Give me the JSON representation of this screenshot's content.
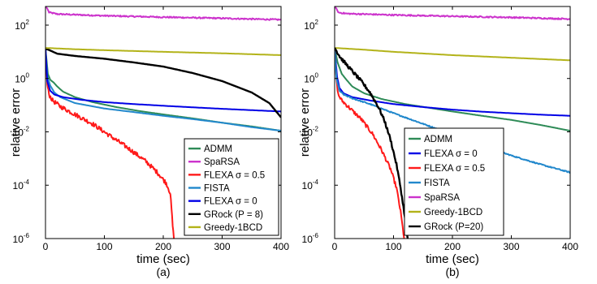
{
  "chart_data": [
    {
      "type": "line",
      "panel_label": "(a)",
      "xlabel": "time (sec)",
      "ylabel": "relative error",
      "xlim": [
        0,
        400
      ],
      "ylim": [
        1e-06,
        500
      ],
      "yscale": "log",
      "x_ticks": [
        0,
        100,
        200,
        300,
        400
      ],
      "y_ticks": [
        {
          "base": "10",
          "exp": "-6",
          "value": 1e-06
        },
        {
          "base": "10",
          "exp": "-4",
          "value": 0.0001
        },
        {
          "base": "10",
          "exp": "-2",
          "value": 0.01
        },
        {
          "base": "10",
          "exp": "0",
          "value": 1
        },
        {
          "base": "10",
          "exp": "2",
          "value": 100
        }
      ],
      "legend_position": "bottom-right",
      "series": [
        {
          "name": "ADMM",
          "color": "#2e8b57",
          "width": 2,
          "noise": 0,
          "points": [
            [
              0,
              13
            ],
            [
              4,
              1.5
            ],
            [
              8,
              0.9
            ],
            [
              14,
              0.7
            ],
            [
              20,
              0.5
            ],
            [
              30,
              0.32
            ],
            [
              50,
              0.2
            ],
            [
              80,
              0.13
            ],
            [
              120,
              0.085
            ],
            [
              160,
              0.06
            ],
            [
              200,
              0.045
            ],
            [
              250,
              0.032
            ],
            [
              300,
              0.022
            ],
            [
              350,
              0.016
            ],
            [
              400,
              0.011
            ]
          ]
        },
        {
          "name": "SpaRSA",
          "color": "#cc33cc",
          "width": 2,
          "noise": 0.05,
          "points": [
            [
              0,
              500
            ],
            [
              3,
              420
            ],
            [
              6,
              300
            ],
            [
              20,
              260
            ],
            [
              100,
              225
            ],
            [
              200,
              200
            ],
            [
              300,
              180
            ],
            [
              400,
              160
            ]
          ]
        },
        {
          "name": "FLEXA σ = 0.5",
          "color": "#ff1a1a",
          "width": 2,
          "noise": 0.16,
          "points": [
            [
              0,
              12
            ],
            [
              3,
              0.6
            ],
            [
              6,
              0.25
            ],
            [
              12,
              0.15
            ],
            [
              25,
              0.09
            ],
            [
              50,
              0.045
            ],
            [
              80,
              0.02
            ],
            [
              110,
              0.007
            ],
            [
              140,
              0.0025
            ],
            [
              170,
              0.0008
            ],
            [
              190,
              0.0003
            ],
            [
              205,
              0.00012
            ],
            [
              212,
              5e-05
            ],
            [
              216,
              3e-06
            ],
            [
              218,
              1e-06
            ]
          ]
        },
        {
          "name": "FISTA",
          "color": "#2288cc",
          "width": 2,
          "noise": 0,
          "points": [
            [
              0,
              13
            ],
            [
              3,
              1.2
            ],
            [
              8,
              0.55
            ],
            [
              15,
              0.3
            ],
            [
              25,
              0.2
            ],
            [
              50,
              0.12
            ],
            [
              100,
              0.075
            ],
            [
              150,
              0.055
            ],
            [
              200,
              0.04
            ],
            [
              250,
              0.03
            ],
            [
              300,
              0.022
            ],
            [
              350,
              0.015
            ],
            [
              400,
              0.011
            ]
          ]
        },
        {
          "name": "FLEXA σ = 0",
          "color": "#0000e6",
          "width": 2,
          "noise": 0,
          "points": [
            [
              0,
              13
            ],
            [
              3,
              0.8
            ],
            [
              8,
              0.35
            ],
            [
              15,
              0.25
            ],
            [
              30,
              0.2
            ],
            [
              60,
              0.16
            ],
            [
              100,
              0.13
            ],
            [
              150,
              0.11
            ],
            [
              200,
              0.095
            ],
            [
              250,
              0.083
            ],
            [
              300,
              0.073
            ],
            [
              350,
              0.065
            ],
            [
              400,
              0.058
            ]
          ]
        },
        {
          "name": "GRock (P = 8)",
          "color": "#000000",
          "width": 2.4,
          "noise": 0,
          "points": [
            [
              0,
              13
            ],
            [
              5,
              12
            ],
            [
              20,
              8.5
            ],
            [
              50,
              7
            ],
            [
              100,
              5.5
            ],
            [
              150,
              4
            ],
            [
              200,
              2.8
            ],
            [
              250,
              1.6
            ],
            [
              300,
              0.8
            ],
            [
              350,
              0.3
            ],
            [
              380,
              0.12
            ],
            [
              400,
              0.035
            ]
          ]
        },
        {
          "name": "Greedy-1BCD",
          "color": "#b3b31a",
          "width": 2,
          "noise": 0,
          "points": [
            [
              0,
              14
            ],
            [
              50,
              12.5
            ],
            [
              100,
              11.5
            ],
            [
              200,
              10
            ],
            [
              300,
              8.8
            ],
            [
              400,
              7.5
            ]
          ]
        }
      ]
    },
    {
      "type": "line",
      "panel_label": "(b)",
      "xlabel": "time (sec)",
      "ylabel": "relative error",
      "xlim": [
        0,
        400
      ],
      "ylim": [
        1e-06,
        500
      ],
      "yscale": "log",
      "x_ticks": [
        0,
        100,
        200,
        300,
        400
      ],
      "y_ticks": [
        {
          "base": "10",
          "exp": "-6",
          "value": 1e-06
        },
        {
          "base": "10",
          "exp": "-4",
          "value": 0.0001
        },
        {
          "base": "10",
          "exp": "-2",
          "value": 0.01
        },
        {
          "base": "10",
          "exp": "0",
          "value": 1
        },
        {
          "base": "10",
          "exp": "2",
          "value": 100
        }
      ],
      "legend_position": "bottom-right",
      "series": [
        {
          "name": "ADMM",
          "color": "#2e8b57",
          "width": 2,
          "noise": 0,
          "points": [
            [
              0,
              14
            ],
            [
              5,
              4
            ],
            [
              12,
              1.5
            ],
            [
              20,
              0.9
            ],
            [
              30,
              0.5
            ],
            [
              50,
              0.28
            ],
            [
              80,
              0.17
            ],
            [
              120,
              0.11
            ],
            [
              160,
              0.08
            ],
            [
              200,
              0.058
            ],
            [
              250,
              0.04
            ],
            [
              300,
              0.028
            ],
            [
              350,
              0.018
            ],
            [
              400,
              0.011
            ]
          ]
        },
        {
          "name": "FLEXA  σ = 0",
          "color": "#0000e6",
          "width": 2,
          "noise": 0,
          "points": [
            [
              0,
              14
            ],
            [
              4,
              1.2
            ],
            [
              8,
              0.45
            ],
            [
              15,
              0.28
            ],
            [
              30,
              0.2
            ],
            [
              60,
              0.15
            ],
            [
              100,
              0.11
            ],
            [
              150,
              0.085
            ],
            [
              200,
              0.068
            ],
            [
              250,
              0.057
            ],
            [
              300,
              0.05
            ],
            [
              350,
              0.044
            ],
            [
              400,
              0.04
            ]
          ]
        },
        {
          "name": "FLEXA σ = 0.5",
          "color": "#ff1a1a",
          "width": 2,
          "noise": 0.14,
          "points": [
            [
              0,
              14
            ],
            [
              3,
              1
            ],
            [
              6,
              0.25
            ],
            [
              12,
              0.15
            ],
            [
              25,
              0.08
            ],
            [
              45,
              0.03
            ],
            [
              65,
              0.008
            ],
            [
              80,
              0.002
            ],
            [
              95,
              0.0004
            ],
            [
              105,
              8e-05
            ],
            [
              112,
              1e-05
            ],
            [
              118,
              1e-06
            ]
          ]
        },
        {
          "name": "FISTA",
          "color": "#2288cc",
          "width": 2,
          "noise": 0.04,
          "points": [
            [
              0,
              14
            ],
            [
              3,
              1
            ],
            [
              8,
              0.35
            ],
            [
              15,
              0.25
            ],
            [
              30,
              0.18
            ],
            [
              60,
              0.11
            ],
            [
              100,
              0.05
            ],
            [
              150,
              0.02
            ],
            [
              200,
              0.008
            ],
            [
              250,
              0.003
            ],
            [
              300,
              0.0013
            ],
            [
              350,
              0.0006
            ],
            [
              400,
              0.0003
            ]
          ]
        },
        {
          "name": "SpaRSA",
          "color": "#cc33cc",
          "width": 2,
          "noise": 0.05,
          "points": [
            [
              0,
              500
            ],
            [
              3,
              420
            ],
            [
              6,
              300
            ],
            [
              20,
              270
            ],
            [
              100,
              240
            ],
            [
              200,
              215
            ],
            [
              300,
              195
            ],
            [
              400,
              170
            ]
          ]
        },
        {
          "name": "Greedy-1BCD",
          "color": "#b3b31a",
          "width": 2,
          "noise": 0,
          "points": [
            [
              0,
              14
            ],
            [
              50,
              12
            ],
            [
              100,
              10
            ],
            [
              200,
              7.5
            ],
            [
              300,
              6
            ],
            [
              400,
              4.8
            ]
          ]
        },
        {
          "name": "GRock (P=20)",
          "color": "#000000",
          "width": 2.4,
          "noise": 0.12,
          "points": [
            [
              0,
              14
            ],
            [
              10,
              6
            ],
            [
              25,
              2.5
            ],
            [
              45,
              0.8
            ],
            [
              60,
              0.3
            ],
            [
              75,
              0.08
            ],
            [
              85,
              0.025
            ],
            [
              95,
              0.005
            ],
            [
              105,
              0.0006
            ],
            [
              112,
              8e-05
            ],
            [
              118,
              1e-05
            ],
            [
              124,
              1e-06
            ]
          ]
        }
      ]
    }
  ]
}
